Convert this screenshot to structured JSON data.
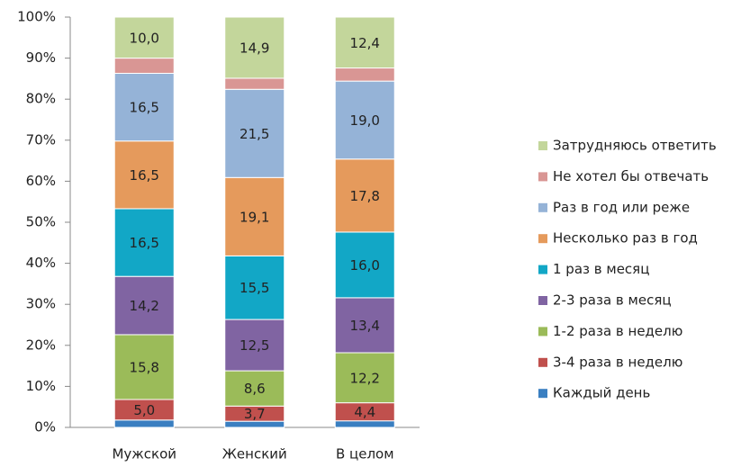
{
  "chart_data": {
    "type": "stacked_bar",
    "categories": [
      "Мужской",
      "Женский",
      "В целом"
    ],
    "series": [
      {
        "name": "Каждый день",
        "color": "#3a7fc1",
        "values": [
          1.8,
          1.5,
          1.6
        ],
        "value_labels": [
          null,
          null,
          null
        ]
      },
      {
        "name": "3-4 раза в неделю",
        "color": "#c0504d",
        "values": [
          5.0,
          3.7,
          4.4
        ],
        "value_labels": [
          "5,0",
          "3,7",
          "4,4"
        ]
      },
      {
        "name": "1-2 раза в неделю",
        "color": "#9bbb59",
        "values": [
          15.8,
          8.6,
          12.2
        ],
        "value_labels": [
          "15,8",
          "8,6",
          "12,2"
        ]
      },
      {
        "name": "2-3 раза в месяц",
        "color": "#8064a2",
        "values": [
          14.2,
          12.5,
          13.4
        ],
        "value_labels": [
          "14,2",
          "12,5",
          "13,4"
        ]
      },
      {
        "name": "1 раз в месяц",
        "color": "#12a7c6",
        "values": [
          16.5,
          15.5,
          16.0
        ],
        "value_labels": [
          "16,5",
          "15,5",
          "16,0"
        ]
      },
      {
        "name": "Несколько раз в год",
        "color": "#e59a5c",
        "values": [
          16.5,
          19.1,
          17.8
        ],
        "value_labels": [
          "16,5",
          "19,1",
          "17,8"
        ]
      },
      {
        "name": "Раз в год или реже",
        "color": "#95b3d7",
        "values": [
          16.5,
          21.5,
          19.0
        ],
        "value_labels": [
          "16,5",
          "21,5",
          "19,0"
        ]
      },
      {
        "name": "Не хотел бы отвечать",
        "color": "#d99694",
        "values": [
          3.7,
          2.7,
          3.2
        ],
        "value_labels": [
          null,
          null,
          null
        ]
      },
      {
        "name": "Затрудняюсь ответить",
        "color": "#c3d69b",
        "values": [
          10.0,
          14.9,
          12.4
        ],
        "value_labels": [
          "10,0",
          "14,9",
          "12,4"
        ]
      }
    ],
    "ylim": [
      0,
      100
    ],
    "yticks": [
      {
        "value": 0,
        "label": "0%"
      },
      {
        "value": 10,
        "label": "10%"
      },
      {
        "value": 20,
        "label": "20%"
      },
      {
        "value": 30,
        "label": "30%"
      },
      {
        "value": 40,
        "label": "40%"
      },
      {
        "value": 50,
        "label": "50%"
      },
      {
        "value": 60,
        "label": "60%"
      },
      {
        "value": 70,
        "label": "70%"
      },
      {
        "value": 80,
        "label": "80%"
      },
      {
        "value": 90,
        "label": "90%"
      },
      {
        "value": 100,
        "label": "100%"
      }
    ],
    "legend": "right"
  }
}
